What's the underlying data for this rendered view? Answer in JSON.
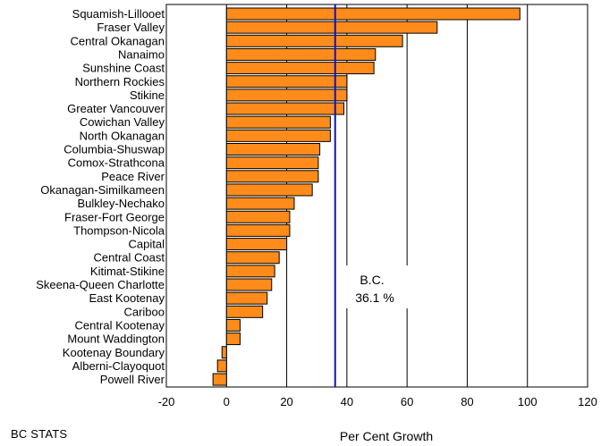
{
  "source_label": "BC STATS",
  "chart_data": {
    "type": "bar",
    "orientation": "horizontal",
    "categories": [
      "Squamish-Lillooet",
      "Fraser Valley",
      "Central Okanagan",
      "Nanaimo",
      "Sunshine Coast",
      "Northern Rockies",
      "Stikine",
      "Greater Vancouver",
      "Cowichan Valley",
      "North Okanagan",
      "Columbia-Shuswap",
      "Comox-Strathcona",
      "Peace River",
      "Okanagan-Similkameen",
      "Bulkley-Nechako",
      "Fraser-Fort George",
      "Thompson-Nicola",
      "Capital",
      "Central Coast",
      "Kitimat-Stikine",
      "Skeena-Queen Charlotte",
      "East Kootenay",
      "Cariboo",
      "Central Kootenay",
      "Mount Waddington",
      "Kootenay Boundary",
      "Alberni-Clayoquot",
      "Powell River"
    ],
    "values": [
      97.5,
      70.0,
      58.5,
      49.5,
      49.0,
      40.0,
      40.0,
      39.0,
      34.5,
      34.5,
      31.0,
      30.5,
      30.5,
      28.5,
      22.5,
      21.0,
      21.0,
      20.0,
      17.5,
      16.0,
      15.0,
      13.5,
      12.0,
      4.5,
      4.5,
      -1.5,
      -3.0,
      -4.5
    ],
    "xlabel": "Per Cent Growth",
    "xlim": [
      -20,
      120
    ],
    "xticks": [
      -20,
      0,
      20,
      40,
      60,
      80,
      100,
      120
    ],
    "grid": "vertical",
    "bar_color": "#FF8C1A",
    "reference_line": {
      "value": 36.1,
      "label_line1": "B.C.",
      "label_line2": "36.1 %",
      "color": "#1010C8"
    }
  }
}
